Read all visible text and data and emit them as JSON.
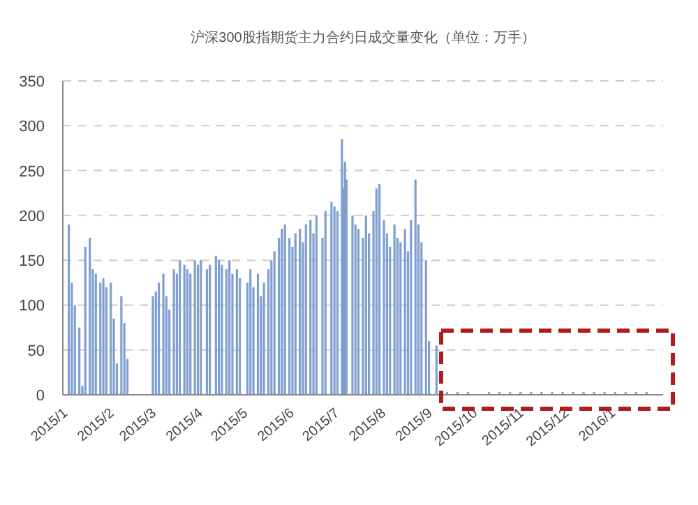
{
  "chart_data": {
    "type": "bar",
    "title": "沪深300股指期货主力合约日成交量变化（单位：万手）",
    "color": "#7f9fd0",
    "grid": "y",
    "x": [
      "2015-01-05",
      "2015-01-07",
      "2015-01-09",
      "2015-01-12",
      "2015-01-14",
      "2015-01-16",
      "2015-01-19",
      "2015-01-21",
      "2015-01-23",
      "2015-01-26",
      "2015-01-28",
      "2015-01-30",
      "2015-02-02",
      "2015-02-04",
      "2015-02-06",
      "2015-02-09",
      "2015-02-11",
      "2015-02-13",
      "2015-03-02",
      "2015-03-04",
      "2015-03-06",
      "2015-03-09",
      "2015-03-11",
      "2015-03-13",
      "2015-03-16",
      "2015-03-18",
      "2015-03-20",
      "2015-03-23",
      "2015-03-25",
      "2015-03-27",
      "2015-03-30",
      "2015-04-01",
      "2015-04-03",
      "2015-04-07",
      "2015-04-09",
      "2015-04-13",
      "2015-04-15",
      "2015-04-17",
      "2015-04-20",
      "2015-04-22",
      "2015-04-24",
      "2015-04-27",
      "2015-04-29",
      "2015-05-04",
      "2015-05-06",
      "2015-05-08",
      "2015-05-11",
      "2015-05-13",
      "2015-05-15",
      "2015-05-18",
      "2015-05-20",
      "2015-05-22",
      "2015-05-25",
      "2015-05-27",
      "2015-05-29",
      "2015-06-01",
      "2015-06-03",
      "2015-06-05",
      "2015-06-08",
      "2015-06-10",
      "2015-06-12",
      "2015-06-15",
      "2015-06-17",
      "2015-06-19",
      "2015-06-23",
      "2015-06-25",
      "2015-06-29",
      "2015-07-01",
      "2015-07-03",
      "2015-07-06",
      "2015-07-07",
      "2015-07-08",
      "2015-07-09",
      "2015-07-13",
      "2015-07-15",
      "2015-07-17",
      "2015-07-20",
      "2015-07-22",
      "2015-07-24",
      "2015-07-27",
      "2015-07-29",
      "2015-07-31",
      "2015-08-03",
      "2015-08-05",
      "2015-08-07",
      "2015-08-10",
      "2015-08-12",
      "2015-08-14",
      "2015-08-17",
      "2015-08-19",
      "2015-08-21",
      "2015-08-24",
      "2015-08-26",
      "2015-08-28",
      "2015-08-31",
      "2015-09-02",
      "2015-09-07",
      "2015-09-14",
      "2015-09-21",
      "2015-09-28",
      "2015-10-12",
      "2015-10-19",
      "2015-10-26",
      "2015-11-02",
      "2015-11-09",
      "2015-11-16",
      "2015-11-23",
      "2015-11-30",
      "2015-12-07",
      "2015-12-14",
      "2015-12-21",
      "2015-12-28",
      "2016-01-04",
      "2016-01-11",
      "2016-01-18",
      "2016-01-25"
    ],
    "values": [
      190,
      125,
      100,
      75,
      10,
      165,
      175,
      140,
      135,
      125,
      130,
      120,
      125,
      85,
      35,
      110,
      80,
      40,
      110,
      115,
      125,
      135,
      110,
      95,
      140,
      135,
      150,
      145,
      140,
      135,
      150,
      145,
      150,
      140,
      145,
      155,
      150,
      145,
      140,
      150,
      135,
      140,
      130,
      125,
      140,
      120,
      135,
      110,
      125,
      140,
      150,
      160,
      175,
      185,
      190,
      175,
      165,
      180,
      185,
      170,
      190,
      195,
      180,
      200,
      175,
      205,
      215,
      210,
      205,
      285,
      230,
      260,
      240,
      200,
      190,
      185,
      175,
      200,
      180,
      205,
      230,
      235,
      195,
      180,
      165,
      190,
      175,
      170,
      185,
      160,
      195,
      240,
      190,
      170,
      150,
      60,
      55,
      3,
      3,
      3,
      3,
      3,
      3,
      3,
      3,
      3,
      3,
      3,
      3,
      3,
      3,
      3,
      3,
      3,
      3,
      3
    ],
    "xlim": [
      "2015-01-01",
      "2016-02-05"
    ],
    "xticks": [
      {
        "value": "2015-01-01",
        "label": "2015/1"
      },
      {
        "value": "2015-02-01",
        "label": "2015/2"
      },
      {
        "value": "2015-03-01",
        "label": "2015/3"
      },
      {
        "value": "2015-04-01",
        "label": "2015/4"
      },
      {
        "value": "2015-05-01",
        "label": "2015/5"
      },
      {
        "value": "2015-06-01",
        "label": "2015/6"
      },
      {
        "value": "2015-07-01",
        "label": "2015/7"
      },
      {
        "value": "2015-08-01",
        "label": "2015/8"
      },
      {
        "value": "2015-09-01",
        "label": "2015/9"
      },
      {
        "value": "2015-10-01",
        "label": "2015/10"
      },
      {
        "value": "2015-11-01",
        "label": "2015/11"
      },
      {
        "value": "2015-12-01",
        "label": "2015/12"
      },
      {
        "value": "2016-01-01",
        "label": "2016/1"
      }
    ],
    "ylim": [
      0,
      350
    ],
    "yticks": [
      0,
      50,
      100,
      150,
      200,
      250,
      300,
      350
    ]
  }
}
